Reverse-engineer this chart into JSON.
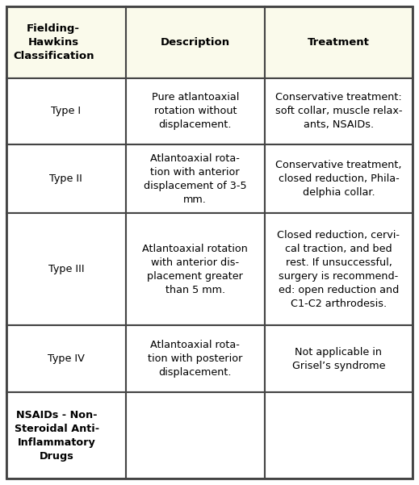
{
  "header_bg": "#FAFAEB",
  "body_bg": "#FFFFFF",
  "border_color": "#444444",
  "col_labels": [
    "Fielding-\nHawkins\nClassification",
    "Description",
    "Treatment"
  ],
  "col_label_ha": [
    "left",
    "center",
    "center"
  ],
  "rows": [
    {
      "col0": "Type I",
      "col1": "Pure atlantoaxial\nrotation without\ndisplacement.",
      "col2": "Conservative treatment:\nsoft collar, muscle relax-\nants, NSAIDs."
    },
    {
      "col0": "Type II",
      "col1": "Atlantoaxial rota-\ntion with anterior\ndisplacement of 3-5\nmm.",
      "col2": "Conservative treatment,\nclosed reduction, Phila-\ndelphia collar."
    },
    {
      "col0": "Type III",
      "col1": "Atlantoaxial rotation\nwith anterior dis-\nplacement greater\nthan 5 mm.",
      "col2": "Closed reduction, cervi-\ncal traction, and bed\nrest. If unsuccessful,\nsurgery is recommend-\ned: open reduction and\nC1-C2 arthrodesis."
    },
    {
      "col0": "Type IV",
      "col1": "Atlantoaxial rota-\ntion with posterior\ndisplacement.",
      "col2": "Not applicable in\nGrisel’s syndrome"
    },
    {
      "col0": "NSAIDs - Non-\nSteroidal Anti-\nInflammatory\nDrugs",
      "col1": "",
      "col2": ""
    }
  ],
  "col0_ha": [
    "center",
    "center",
    "center",
    "center",
    "left"
  ],
  "col0_bold": [
    false,
    false,
    false,
    false,
    false
  ],
  "header_fontsize": 9.5,
  "body_fontsize": 9.2
}
